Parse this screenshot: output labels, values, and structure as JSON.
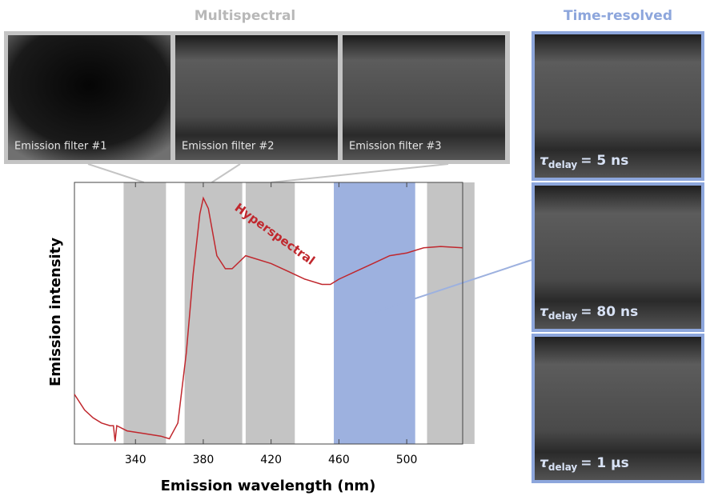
{
  "chart_data": {
    "type": "line",
    "x_label": "Emission wavelength (nm)",
    "y_label": "Emission intensity",
    "annotation": "Hyperspectral",
    "x": [
      304,
      310,
      315,
      320,
      325,
      327,
      328,
      329,
      335,
      345,
      355,
      360,
      365,
      370,
      374,
      378,
      380,
      383,
      388,
      393,
      397,
      405,
      420,
      430,
      440,
      450,
      455,
      460,
      470,
      480,
      490,
      500,
      510,
      520,
      533
    ],
    "series": [
      {
        "color": "#c0272d",
        "values": [
          0.19,
          0.13,
          0.1,
          0.08,
          0.07,
          0.07,
          0.01,
          0.07,
          0.05,
          0.04,
          0.03,
          0.02,
          0.08,
          0.35,
          0.65,
          0.88,
          0.94,
          0.9,
          0.72,
          0.67,
          0.67,
          0.72,
          0.69,
          0.66,
          0.63,
          0.61,
          0.61,
          0.63,
          0.66,
          0.69,
          0.72,
          0.73,
          0.75,
          0.755,
          0.75
        ]
      }
    ],
    "xlim": [
      304,
      533
    ],
    "ylim": [
      0,
      1
    ],
    "xticks": [
      340,
      380,
      420,
      460,
      500
    ],
    "bands": [
      {
        "start": 333,
        "end": 358,
        "color": "#c4c4c4"
      },
      {
        "start": 369,
        "end": 403,
        "color": "#c4c4c4"
      },
      {
        "start": 405,
        "end": 434,
        "color": "#c4c4c4"
      },
      {
        "start": 457,
        "end": 505,
        "color": "#9db1df"
      },
      {
        "start": 512,
        "end": 540,
        "color": "#c4c4c4"
      }
    ]
  },
  "multispectral": {
    "title": "Multispectral",
    "panels": [
      "Emission filter #1",
      "Emission filter #2",
      "Emission filter #3"
    ]
  },
  "time_resolved": {
    "title": "Time-resolved",
    "panels": [
      {
        "symbol": "τ",
        "subscript": "delay",
        "text": "= 5 ns"
      },
      {
        "symbol": "τ",
        "subscript": "delay",
        "text": "= 80 ns"
      },
      {
        "symbol": "τ",
        "subscript": "delay",
        "text": "= 1 μs"
      }
    ]
  }
}
